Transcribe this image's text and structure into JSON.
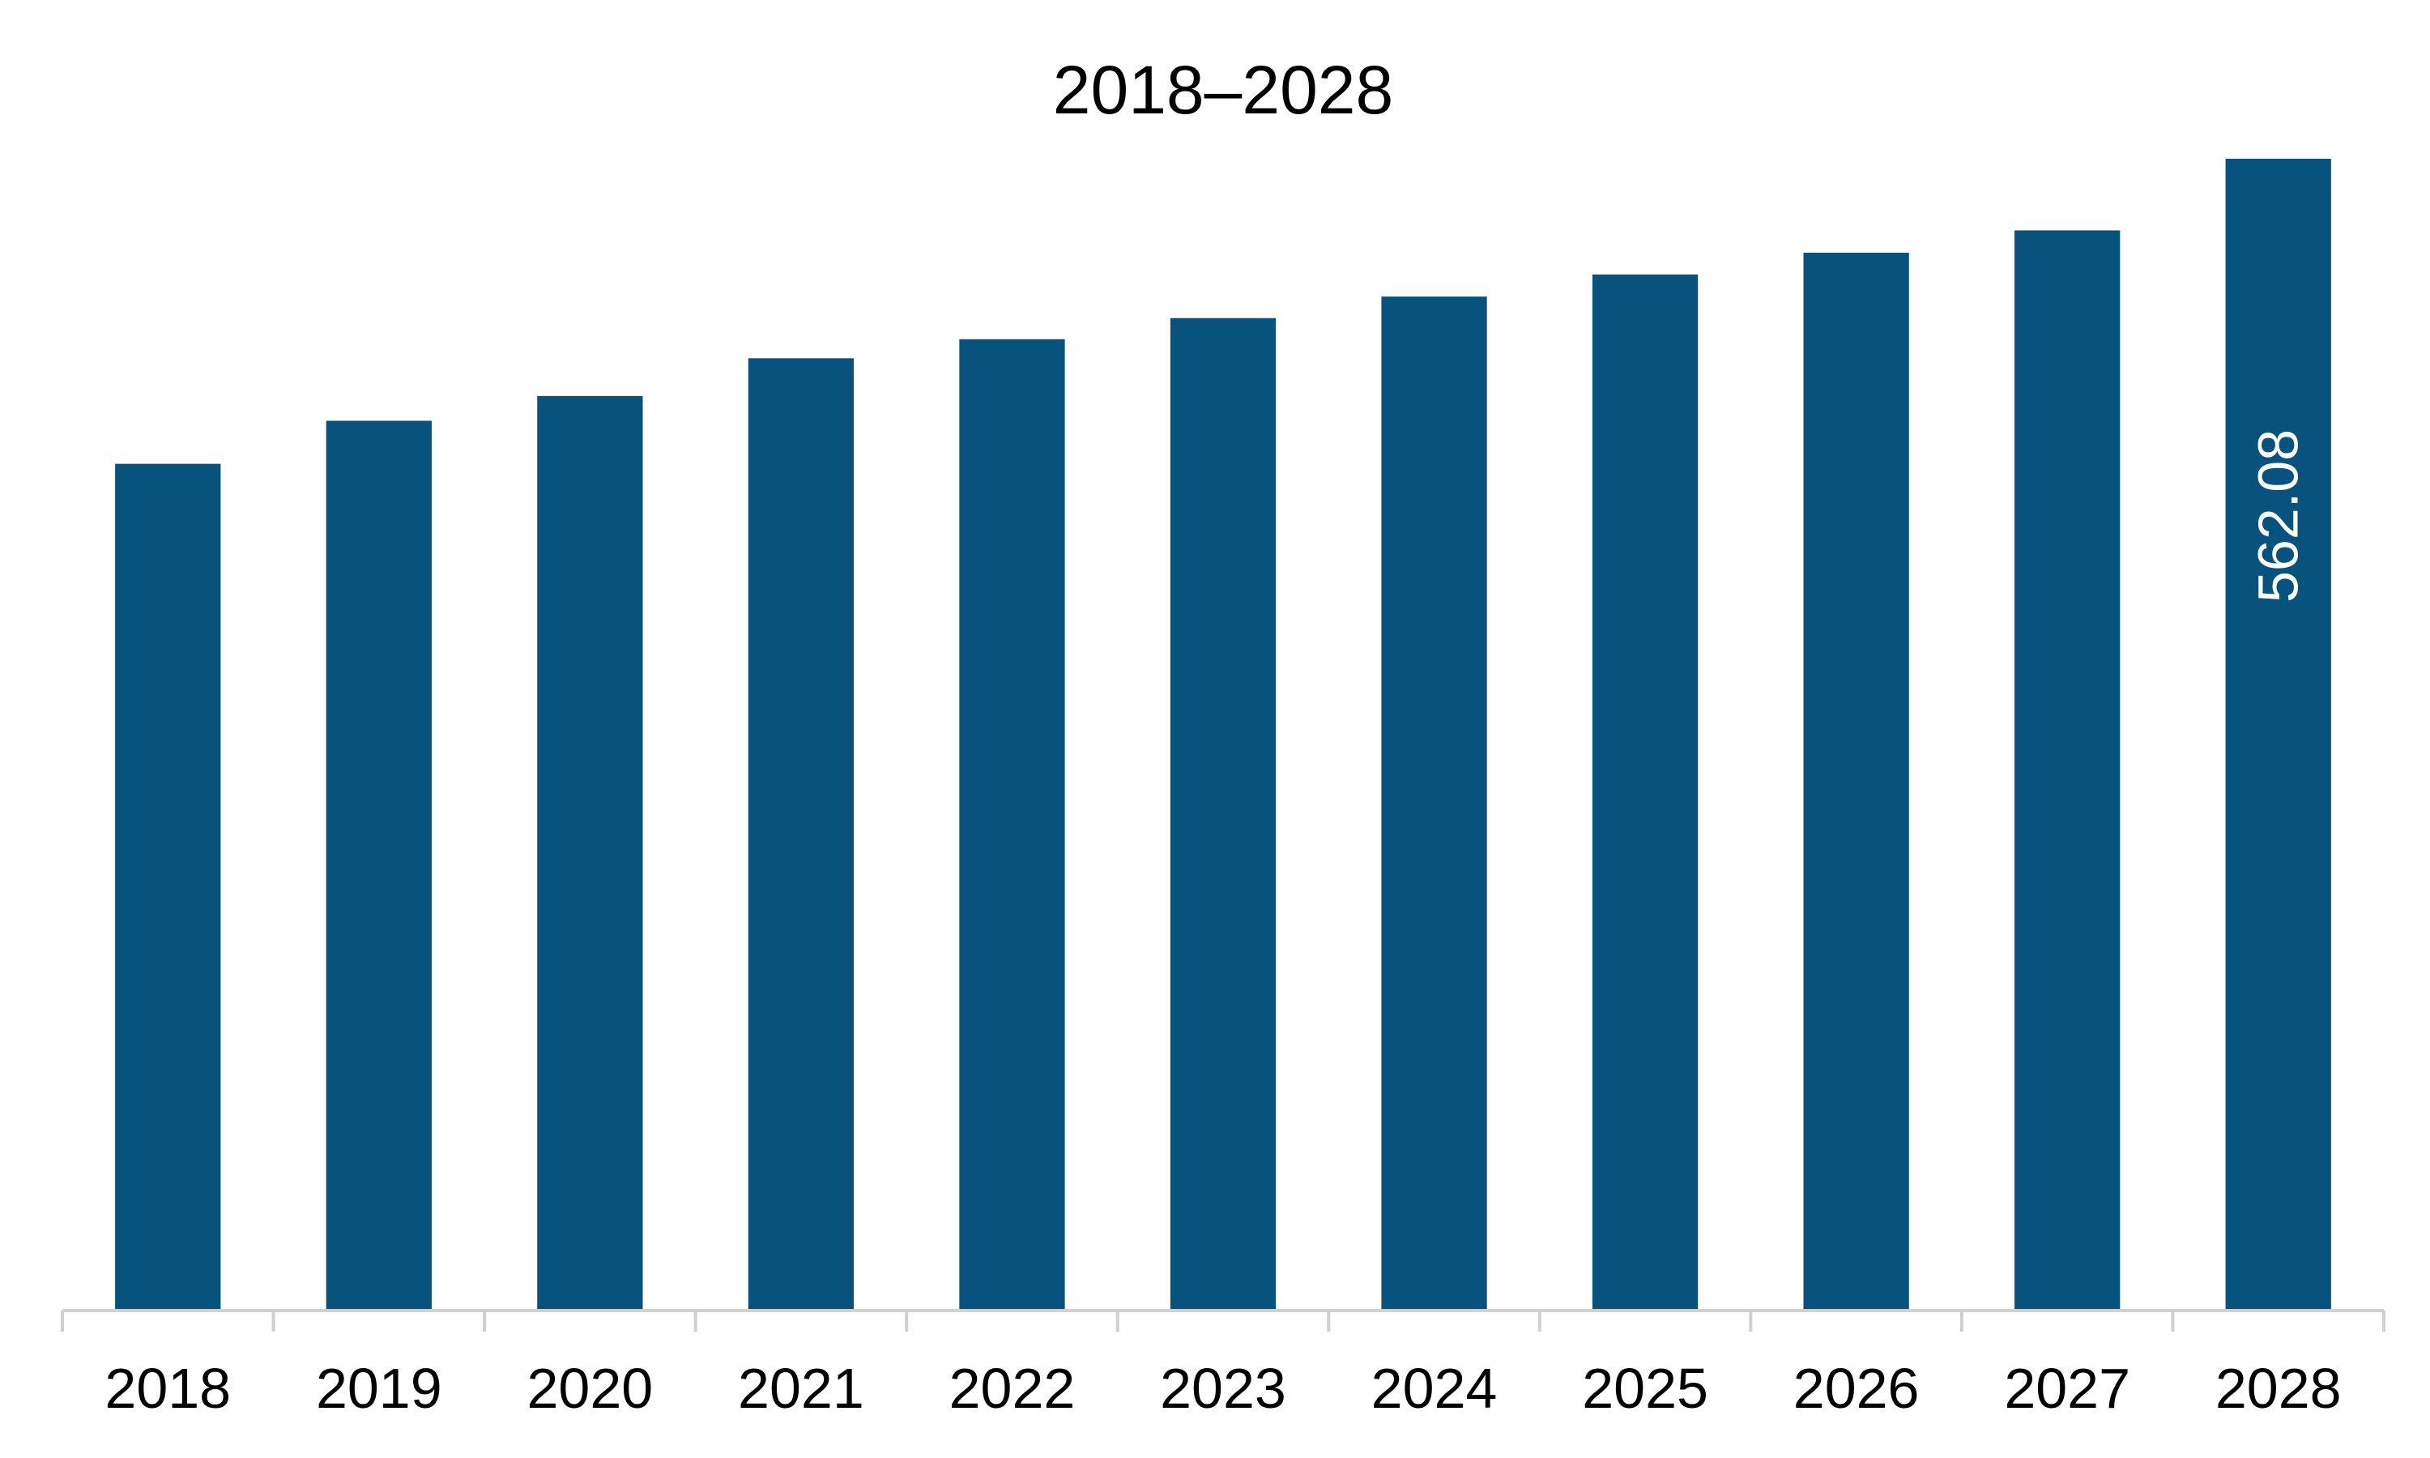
{
  "chart_data": {
    "type": "bar",
    "title": "2018–2028",
    "xlabel": "",
    "ylabel": "",
    "categories": [
      "2018",
      "2019",
      "2020",
      "2021",
      "2022",
      "2023",
      "2024",
      "2025",
      "2026",
      "2027",
      "2028"
    ],
    "values": [
      413.2,
      434.2,
      446.3,
      464.7,
      474.0,
      484.3,
      494.8,
      505.6,
      516.2,
      527.1,
      562.08
    ],
    "data_labels": {
      "2028": "562.08"
    },
    "ylim": [
      0,
      600
    ],
    "grid": false,
    "legend": "none",
    "colors": {
      "bar": "#08537E",
      "axis": "#d0d0d0",
      "label_on_bar": "#ffffff",
      "text": "#000000"
    }
  }
}
